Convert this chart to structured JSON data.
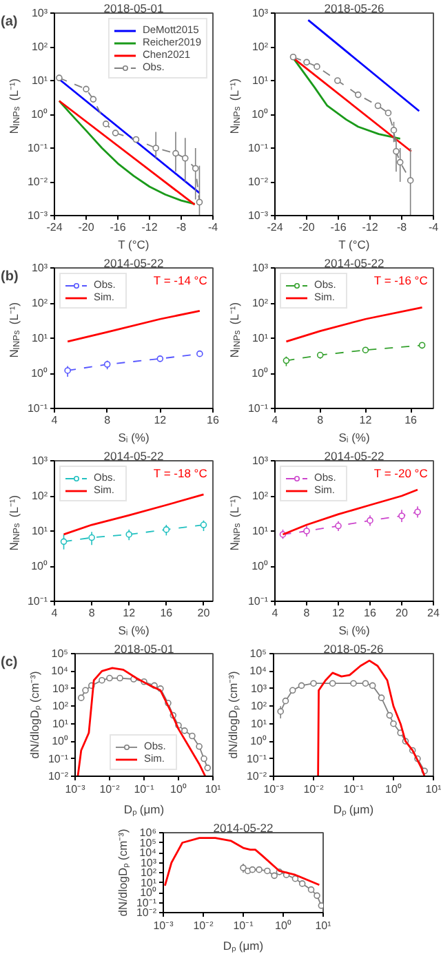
{
  "chart_data": [
    {
      "type": "line",
      "title": "2018-05-01",
      "xlabel": "T (°C)",
      "ylabel": "N$_{INPs}$ (L⁻¹)",
      "annotations": [
        "(a)"
      ],
      "log": "y",
      "grid": false,
      "legend": "top right",
      "xlim": [
        -24,
        -4
      ],
      "xticks": [
        -24,
        -20,
        -16,
        -12,
        -8,
        -4
      ],
      "ylim": [
        0.001,
        1000
      ],
      "yticks": [
        {
          "value": 0.001,
          "label": "10⁻³"
        },
        {
          "value": 0.01,
          "label": "10⁻²"
        },
        {
          "value": 0.1,
          "label": "10⁻¹"
        },
        {
          "value": 1,
          "label": "10⁰"
        },
        {
          "value": 10,
          "label": "10¹"
        },
        {
          "value": 100,
          "label": "10²"
        },
        {
          "value": 1000,
          "label": "10³"
        }
      ],
      "series": [
        {
          "name": "DeMott2015",
          "color": "#0000ff",
          "x": [
            -23.4,
            -5.7
          ],
          "values": [
            11,
            0.0047
          ],
          "marker": "none",
          "line_style": "solid"
        },
        {
          "name": "Reicher2019",
          "color": "#1a9a1a",
          "x": [
            -23.4,
            -22,
            -20,
            -18,
            -16,
            -14,
            -12,
            -10,
            -8,
            -6.3
          ],
          "values": [
            2.5,
            1.07,
            0.33,
            0.1,
            0.035,
            0.015,
            0.0072,
            0.0042,
            0.0028,
            0.0022
          ],
          "marker": "none",
          "line_style": "solid"
        },
        {
          "name": "Chen2021",
          "color": "#ff0000",
          "x": [
            -23.4,
            -6.3
          ],
          "values": [
            2.5,
            0.0021
          ],
          "marker": "none",
          "line_style": "solid"
        },
        {
          "name": "Obs.",
          "color": "#808080",
          "x": [
            -23.4,
            -20,
            -19.1,
            -17.5,
            -16.3,
            -13.7,
            -11.2,
            -8.7,
            -7.5,
            -6.2,
            -5.7
          ],
          "values": [
            12,
            5.6,
            2.8,
            0.52,
            0.28,
            0.18,
            0.1,
            0.07,
            0.05,
            0.025,
            0.0025
          ],
          "errors": [
            null,
            null,
            null,
            null,
            null,
            null,
            [
              0.05,
              0.3
            ],
            [
              0.02,
              0.3
            ],
            [
              0.01,
              0.2
            ],
            [
              0.003,
              0.1
            ],
            [
              0.001,
              0.03
            ]
          ],
          "marker": "circle",
          "line_style": "dashed"
        }
      ]
    },
    {
      "type": "line",
      "title": "2018-05-26",
      "xlabel": "T (°C)",
      "ylabel": "N$_{INPs}$ (L⁻¹)",
      "log": "y",
      "grid": false,
      "xlim": [
        -24,
        -4
      ],
      "xticks": [
        -24,
        -20,
        -16,
        -12,
        -8,
        -4
      ],
      "ylim": [
        0.001,
        1000
      ],
      "yticks": [
        {
          "value": 0.001,
          "label": "10⁻³"
        },
        {
          "value": 0.01,
          "label": "10⁻²"
        },
        {
          "value": 0.1,
          "label": "10⁻¹"
        },
        {
          "value": 1,
          "label": "10⁰"
        },
        {
          "value": 10,
          "label": "10¹"
        },
        {
          "value": 100,
          "label": "10²"
        },
        {
          "value": 1000,
          "label": "10³"
        }
      ],
      "series": [
        {
          "color": "#0000ff",
          "x": [
            -19.8,
            -5.8
          ],
          "values": [
            620,
            1.25
          ],
          "marker": "none",
          "line_style": "solid"
        },
        {
          "color": "#1a9a1a",
          "x": [
            -21.7,
            -19,
            -17.4,
            -15,
            -13.5,
            -10.9,
            -8.2
          ],
          "values": [
            47,
            6.3,
            1.8,
            0.7,
            0.43,
            0.26,
            0.19
          ],
          "marker": "none",
          "line_style": "solid"
        },
        {
          "color": "#ff0000",
          "x": [
            -21.7,
            -6.8
          ],
          "values": [
            47,
            0.08
          ],
          "marker": "none",
          "line_style": "solid"
        },
        {
          "color": "#808080",
          "x": [
            -21.7,
            -20,
            -18.7,
            -16.1,
            -13.5,
            -11,
            -9.7,
            -9,
            -8.7,
            -8.2,
            -6.9
          ],
          "values": [
            50,
            35,
            26,
            10,
            3.8,
            1.8,
            1.1,
            0.34,
            0.08,
            0.038,
            0.011
          ],
          "errors": [
            null,
            null,
            null,
            null,
            null,
            null,
            null,
            [
              0.15,
              0.6
            ],
            [
              0.02,
              0.2
            ],
            [
              0.01,
              0.1
            ],
            [
              0.001,
              0.1
            ]
          ],
          "marker": "circle",
          "line_style": "dashed"
        }
      ]
    },
    {
      "type": "line",
      "title": "2014-05-22",
      "xlabel": "Sᵢ (%)",
      "ylabel": "N$_{INPs}$ (L⁻¹)",
      "annotations": [
        "(b)",
        "T = -14 °C"
      ],
      "log": "y",
      "grid": false,
      "legend": "top left",
      "xlim": [
        4,
        16
      ],
      "xticks": [
        4,
        8,
        12,
        16
      ],
      "ylim": [
        0.1,
        1000
      ],
      "yticks": [
        {
          "value": 0.1,
          "label": "10⁻¹"
        },
        {
          "value": 1,
          "label": "10⁰"
        },
        {
          "value": 10,
          "label": "10¹"
        },
        {
          "value": 100,
          "label": "10²"
        },
        {
          "value": 1000,
          "label": "10³"
        }
      ],
      "series": [
        {
          "name": "Obs.",
          "color": "#5555ff",
          "x": [
            5,
            8,
            12,
            15
          ],
          "values": [
            1.2,
            1.8,
            2.6,
            3.6
          ],
          "errors": [
            [
              0.8,
              1.6
            ],
            [
              1.3,
              2.3
            ],
            [
              2.2,
              3.1
            ],
            [
              3.0,
              4.3
            ]
          ],
          "marker": "circle",
          "line_style": "dashed"
        },
        {
          "name": "Sim.",
          "color": "#ff0000",
          "x": [
            5,
            8,
            12,
            15
          ],
          "values": [
            8,
            15,
            35,
            60
          ],
          "marker": "none",
          "line_style": "solid"
        }
      ]
    },
    {
      "type": "line",
      "title": "2014-05-22",
      "xlabel": "Sᵢ (%)",
      "ylabel": "N$_{INPs}$ (L⁻¹)",
      "annotations": [
        "T = -16 °C"
      ],
      "log": "y",
      "grid": false,
      "legend": "top left",
      "xlim": [
        4,
        18
      ],
      "xticks": [
        4,
        8,
        12,
        16
      ],
      "ylim": [
        0.1,
        1000
      ],
      "yticks": [
        {
          "value": 0.1,
          "label": "10⁻¹"
        },
        {
          "value": 1,
          "label": "10⁰"
        },
        {
          "value": 10,
          "label": "10¹"
        },
        {
          "value": 100,
          "label": "10²"
        },
        {
          "value": 1000,
          "label": "10³"
        }
      ],
      "series": [
        {
          "name": "Obs.",
          "color": "#33a02c",
          "x": [
            5,
            8,
            12,
            17
          ],
          "values": [
            2.3,
            3.3,
            4.6,
            6.3
          ],
          "errors": [
            [
              1.6,
              3.0
            ],
            [
              2.6,
              4.0
            ],
            [
              3.7,
              5.6
            ],
            [
              5.0,
              7.6
            ]
          ],
          "marker": "circle",
          "line_style": "dashed"
        },
        {
          "name": "Sim.",
          "color": "#ff0000",
          "x": [
            5,
            8,
            12,
            17
          ],
          "values": [
            8,
            16,
            35,
            75
          ],
          "marker": "none",
          "line_style": "solid"
        }
      ]
    },
    {
      "type": "line",
      "title": "2014-05-22",
      "xlabel": "Sᵢ (%)",
      "ylabel": "N$_{INPs}$ (L⁻¹)",
      "annotations": [
        "T = -18 °C"
      ],
      "log": "y",
      "grid": false,
      "legend": "top left",
      "xlim": [
        4,
        21
      ],
      "xticks": [
        4,
        8,
        12,
        16,
        20
      ],
      "ylim": [
        0.1,
        1000
      ],
      "yticks": [
        {
          "value": 0.1,
          "label": "10⁻¹"
        },
        {
          "value": 1,
          "label": "10⁰"
        },
        {
          "value": 10,
          "label": "10¹"
        },
        {
          "value": 100,
          "label": "10²"
        },
        {
          "value": 1000,
          "label": "10³"
        }
      ],
      "series": [
        {
          "name": "Obs.",
          "color": "#20c0c0",
          "x": [
            5,
            8,
            12,
            16,
            20
          ],
          "values": [
            5,
            6.5,
            8,
            11,
            15
          ],
          "errors": [
            [
              3,
              8
            ],
            [
              4,
              9.5
            ],
            [
              5.5,
              11
            ],
            [
              7.5,
              15
            ],
            [
              10,
              20
            ]
          ],
          "marker": "circle",
          "line_style": "dashed"
        },
        {
          "name": "Sim.",
          "color": "#ff0000",
          "x": [
            5,
            8,
            12,
            16,
            20
          ],
          "values": [
            8,
            15,
            28,
            55,
            110
          ],
          "marker": "none",
          "line_style": "solid"
        }
      ]
    },
    {
      "type": "line",
      "title": "2014-05-22",
      "xlabel": "Sᵢ (%)",
      "ylabel": "N$_{INPs}$ (L⁻¹)",
      "annotations": [
        "T = -20 °C"
      ],
      "log": "y",
      "grid": false,
      "legend": "top left",
      "xlim": [
        4,
        24
      ],
      "xticks": [
        4,
        8,
        12,
        16,
        20,
        24
      ],
      "ylim": [
        0.1,
        1000
      ],
      "yticks": [
        {
          "value": 0.1,
          "label": "10⁻¹"
        },
        {
          "value": 1,
          "label": "10⁰"
        },
        {
          "value": 10,
          "label": "10¹"
        },
        {
          "value": 100,
          "label": "10²"
        },
        {
          "value": 1000,
          "label": "10³"
        }
      ],
      "series": [
        {
          "name": "Obs.",
          "color": "#cc44cc",
          "x": [
            5,
            8,
            12,
            16,
            20,
            22
          ],
          "values": [
            8,
            10,
            14,
            20,
            27,
            35
          ],
          "errors": [
            [
              6,
              11
            ],
            [
              7,
              14
            ],
            [
              10,
              19
            ],
            [
              14,
              28
            ],
            [
              18,
              40
            ],
            [
              24,
              50
            ]
          ],
          "marker": "circle",
          "line_style": "dashed"
        },
        {
          "name": "Sim.",
          "color": "#ff0000",
          "x": [
            5,
            8,
            12,
            16,
            20,
            22
          ],
          "values": [
            8,
            15,
            30,
            55,
            100,
            150
          ],
          "marker": "none",
          "line_style": "solid"
        }
      ]
    },
    {
      "type": "line",
      "title": "2018-05-01",
      "xlabel": "Dₚ (μm)",
      "ylabel": "dN/dlogDₚ (cm⁻³)",
      "annotations": [
        "(c)"
      ],
      "log": "xy",
      "grid": false,
      "legend": "bottom",
      "xlim": [
        0.001,
        10
      ],
      "xticks": [
        {
          "value": 0.001,
          "label": "10⁻³"
        },
        {
          "value": 0.01,
          "label": "10⁻²"
        },
        {
          "value": 0.1,
          "label": "10⁻¹"
        },
        {
          "value": 1,
          "label": "10⁰"
        },
        {
          "value": 10,
          "label": "10¹"
        }
      ],
      "ylim": [
        0.01,
        100000
      ],
      "yticks": [
        {
          "value": 0.01,
          "label": "10⁻²"
        },
        {
          "value": 0.1,
          "label": "10⁻¹"
        },
        {
          "value": 1,
          "label": "10⁰"
        },
        {
          "value": 10,
          "label": "10¹"
        },
        {
          "value": 100,
          "label": "10²"
        },
        {
          "value": 1000,
          "label": "10³"
        },
        {
          "value": 10000,
          "label": "10⁴"
        },
        {
          "value": 100000,
          "label": "10⁵"
        }
      ],
      "series": [
        {
          "name": "Obs.",
          "color": "#808080",
          "x": [
            0.0015,
            0.002,
            0.003,
            0.006,
            0.01,
            0.02,
            0.05,
            0.1,
            0.2,
            0.3,
            0.5,
            0.7,
            1,
            1.5,
            2.5,
            4,
            5.5,
            7
          ],
          "values": [
            300,
            800,
            1500,
            3000,
            4000,
            4000,
            3500,
            2500,
            1500,
            1000,
            150,
            30,
            8,
            4,
            2,
            0.5,
            0.1,
            0.03
          ],
          "marker": "circle",
          "line_style": "solid"
        },
        {
          "name": "Sim.",
          "color": "#ff0000",
          "x": [
            0.0012,
            0.0015,
            0.0025,
            0.0035,
            0.006,
            0.012,
            0.025,
            0.06,
            0.15,
            0.3,
            0.6,
            1,
            2,
            4,
            6
          ],
          "values": [
            0.01,
            0.3,
            3,
            3000,
            10000,
            15000,
            12000,
            4000,
            1500,
            800,
            50,
            5,
            0.5,
            0.05,
            0.01
          ],
          "marker": "none",
          "line_style": "solid"
        }
      ]
    },
    {
      "type": "line",
      "title": "2018-05-26",
      "xlabel": "Dₚ (μm)",
      "ylabel": "dN/dlogDₚ (cm⁻³)",
      "log": "xy",
      "grid": false,
      "xlim": [
        0.001,
        10
      ],
      "xticks": [
        {
          "value": 0.001,
          "label": "10⁻³"
        },
        {
          "value": 0.01,
          "label": "10⁻²"
        },
        {
          "value": 0.1,
          "label": "10⁻¹"
        },
        {
          "value": 1,
          "label": "10⁰"
        },
        {
          "value": 10,
          "label": "10¹"
        }
      ],
      "ylim": [
        0.01,
        100000
      ],
      "yticks": [
        {
          "value": 0.01,
          "label": "10⁻²"
        },
        {
          "value": 0.1,
          "label": "10⁻¹"
        },
        {
          "value": 1,
          "label": "10⁰"
        },
        {
          "value": 10,
          "label": "10¹"
        },
        {
          "value": 100,
          "label": "10²"
        },
        {
          "value": 1000,
          "label": "10³"
        },
        {
          "value": 10000,
          "label": "10⁴"
        },
        {
          "value": 100000,
          "label": "10⁵"
        }
      ],
      "series": [
        {
          "color": "#808080",
          "x": [
            0.0015,
            0.002,
            0.003,
            0.005,
            0.01,
            0.03,
            0.1,
            0.2,
            0.3,
            0.5,
            0.8,
            1,
            1.5,
            2,
            3,
            4,
            6
          ],
          "values": [
            50,
            200,
            800,
            1500,
            2000,
            2000,
            2000,
            2000,
            1500,
            300,
            30,
            10,
            3,
            1,
            0.3,
            0.1,
            0.02
          ],
          "errors": [
            [
              20,
              100
            ],
            null,
            null,
            null,
            null,
            null,
            null,
            null,
            null,
            null,
            null,
            null,
            null,
            null,
            null,
            null,
            null
          ],
          "marker": "circle",
          "line_style": "solid"
        },
        {
          "color": "#ff0000",
          "x": [
            0.013,
            0.0135,
            0.02,
            0.03,
            0.05,
            0.08,
            0.15,
            0.25,
            0.4,
            0.7,
            1,
            1.5,
            2,
            3,
            5,
            6
          ],
          "values": [
            0.01,
            800,
            3000,
            8000,
            5000,
            6000,
            20000,
            40000,
            20000,
            3000,
            100,
            10,
            1,
            0.3,
            0.03,
            0.01
          ],
          "marker": "none",
          "line_style": "solid"
        }
      ]
    },
    {
      "type": "line",
      "title": "2014-05-22",
      "xlabel": "Dₚ (μm)",
      "ylabel": "dN/dlogDₚ (cm⁻³)",
      "log": "xy",
      "grid": false,
      "xlim": [
        0.001,
        10
      ],
      "xticks": [
        {
          "value": 0.001,
          "label": "10⁻³"
        },
        {
          "value": 0.01,
          "label": "10⁻²"
        },
        {
          "value": 0.1,
          "label": "10⁻¹"
        },
        {
          "value": 1,
          "label": "10⁰"
        },
        {
          "value": 10,
          "label": "10¹"
        }
      ],
      "ylim": [
        0.01,
        1000000
      ],
      "yticks": [
        {
          "value": 0.01,
          "label": "10⁻²"
        },
        {
          "value": 0.1,
          "label": "10⁻¹"
        },
        {
          "value": 1,
          "label": "10⁰"
        },
        {
          "value": 10,
          "label": "10¹"
        },
        {
          "value": 100,
          "label": "10²"
        },
        {
          "value": 1000,
          "label": "10³"
        },
        {
          "value": 10000,
          "label": "10⁴"
        },
        {
          "value": 100000,
          "label": "10⁵"
        },
        {
          "value": 1000000,
          "label": "10⁶"
        }
      ],
      "series": [
        {
          "color": "#808080",
          "x": [
            0.1,
            0.13,
            0.17,
            0.25,
            0.4,
            0.6,
            0.8,
            1.2,
            2,
            3,
            5,
            7,
            9
          ],
          "values": [
            300,
            150,
            200,
            200,
            150,
            50,
            120,
            60,
            25,
            8,
            2,
            0.5,
            0.05
          ],
          "errors": [
            [
              100,
              800
            ],
            null,
            null,
            null,
            null,
            null,
            null,
            null,
            null,
            null,
            null,
            null,
            null
          ],
          "marker": "circle",
          "line_style": "solid"
        },
        {
          "color": "#ff0000",
          "x": [
            0.0011,
            0.0016,
            0.003,
            0.008,
            0.02,
            0.05,
            0.1,
            0.15,
            0.2,
            0.3,
            0.8,
            2,
            8
          ],
          "values": [
            5,
            1000,
            100000,
            300000,
            300000,
            150000,
            30000,
            20000,
            20000,
            5000,
            150,
            60,
            6
          ],
          "marker": "none",
          "line_style": "solid"
        }
      ]
    }
  ]
}
